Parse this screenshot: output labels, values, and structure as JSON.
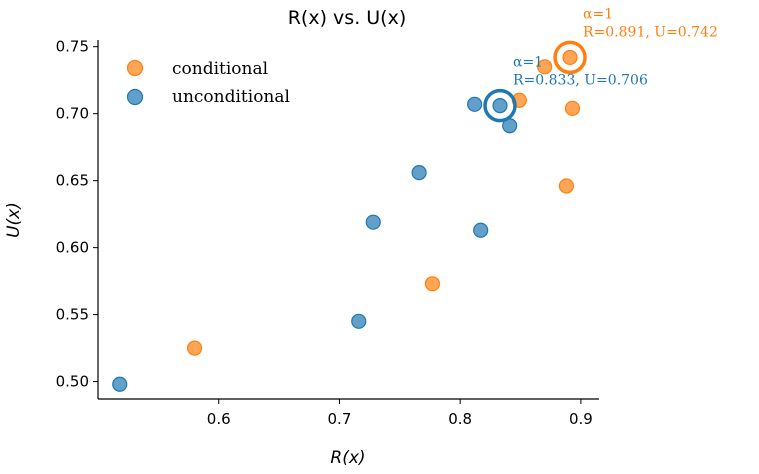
{
  "chart_data": {
    "type": "scatter",
    "title": "R(x) vs. U(x)",
    "xlabel": "R(x)",
    "ylabel": "U(x)",
    "xlim": [
      0.5,
      0.915
    ],
    "ylim": [
      0.487,
      0.755
    ],
    "xticks": [
      "0.6",
      "0.7",
      "0.8",
      "0.9"
    ],
    "yticks": [
      "0.50",
      "0.55",
      "0.60",
      "0.65",
      "0.70",
      "0.75"
    ],
    "legend_position": "top-left",
    "grid": false,
    "series": [
      {
        "name": "conditional",
        "color": "#ff7f0e",
        "points": [
          {
            "x": 0.58,
            "y": 0.525
          },
          {
            "x": 0.777,
            "y": 0.573
          },
          {
            "x": 0.888,
            "y": 0.646
          },
          {
            "x": 0.893,
            "y": 0.704
          },
          {
            "x": 0.849,
            "y": 0.71
          },
          {
            "x": 0.87,
            "y": 0.735
          },
          {
            "x": 0.891,
            "y": 0.742
          }
        ],
        "highlight": {
          "x": 0.891,
          "y": 0.742,
          "line1": "α=1",
          "line2": "R=0.891, U=0.742"
        }
      },
      {
        "name": "unconditional",
        "color": "#1f77b4",
        "points": [
          {
            "x": 0.518,
            "y": 0.498
          },
          {
            "x": 0.716,
            "y": 0.545
          },
          {
            "x": 0.728,
            "y": 0.619
          },
          {
            "x": 0.766,
            "y": 0.656
          },
          {
            "x": 0.817,
            "y": 0.613
          },
          {
            "x": 0.812,
            "y": 0.707
          },
          {
            "x": 0.841,
            "y": 0.691
          },
          {
            "x": 0.833,
            "y": 0.706
          }
        ],
        "highlight": {
          "x": 0.833,
          "y": 0.706,
          "line1": "α=1",
          "line2": "R=0.833, U=0.706"
        }
      }
    ]
  }
}
